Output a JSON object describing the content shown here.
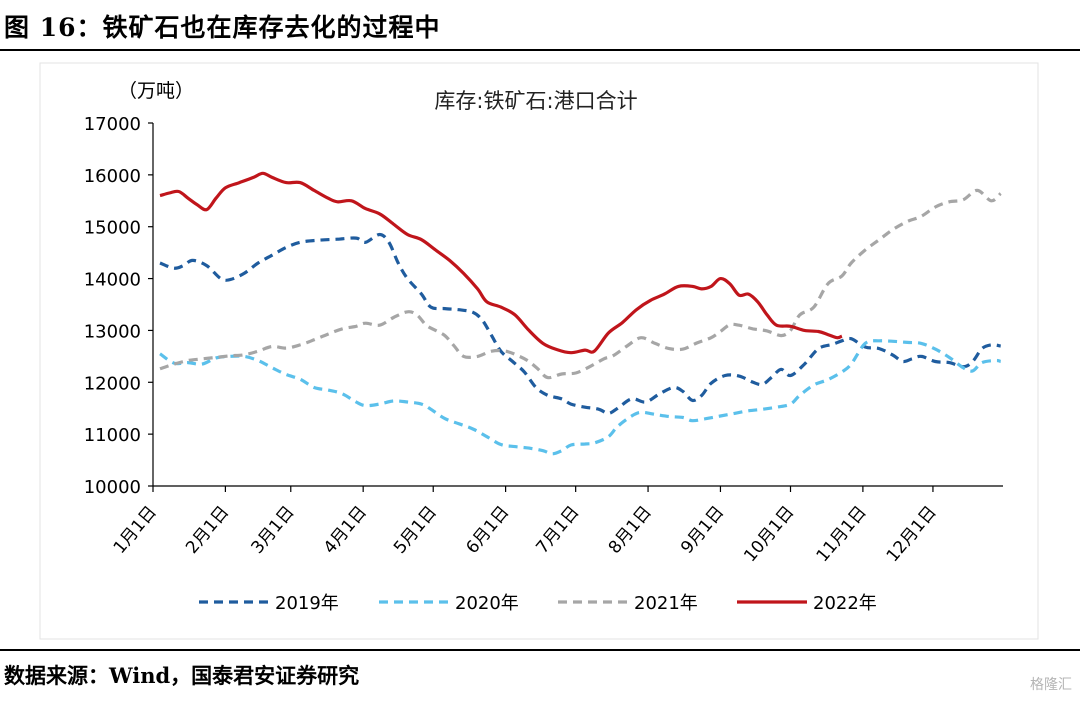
{
  "figure": {
    "title": "图 16：铁矿石也在库存去化的过程中",
    "source": "数据来源：Wind，国泰君安证券研究",
    "watermark": "格隆汇"
  },
  "chart_data": {
    "type": "line",
    "title": "库存:铁矿石:港口合计",
    "ylabel": "（万吨）",
    "ylim": [
      10000,
      17000
    ],
    "yticks": [
      10000,
      11000,
      12000,
      13000,
      14000,
      15000,
      16000,
      17000
    ],
    "xlim": [
      1,
      365
    ],
    "xticks": [
      {
        "label": "1月1日",
        "day": 1
      },
      {
        "label": "2月1日",
        "day": 32
      },
      {
        "label": "3月1日",
        "day": 60
      },
      {
        "label": "4月1日",
        "day": 91
      },
      {
        "label": "5月1日",
        "day": 121
      },
      {
        "label": "6月1日",
        "day": 152
      },
      {
        "label": "7月1日",
        "day": 182
      },
      {
        "label": "8月1日",
        "day": 213
      },
      {
        "label": "9月1日",
        "day": 244
      },
      {
        "label": "10月1日",
        "day": 274
      },
      {
        "label": "11月1日",
        "day": 305
      },
      {
        "label": "12月1日",
        "day": 335
      }
    ],
    "series": [
      {
        "name": "2019年",
        "color": "#1f5c9e",
        "dash": "dashed",
        "points": [
          [
            4,
            14300
          ],
          [
            10,
            14200
          ],
          [
            14,
            14250
          ],
          [
            18,
            14350
          ],
          [
            24,
            14250
          ],
          [
            30,
            14000
          ],
          [
            34,
            13980
          ],
          [
            40,
            14100
          ],
          [
            46,
            14300
          ],
          [
            52,
            14450
          ],
          [
            58,
            14600
          ],
          [
            64,
            14700
          ],
          [
            72,
            14740
          ],
          [
            80,
            14760
          ],
          [
            88,
            14780
          ],
          [
            92,
            14700
          ],
          [
            98,
            14850
          ],
          [
            102,
            14700
          ],
          [
            106,
            14300
          ],
          [
            110,
            14000
          ],
          [
            116,
            13700
          ],
          [
            120,
            13450
          ],
          [
            126,
            13420
          ],
          [
            132,
            13400
          ],
          [
            138,
            13350
          ],
          [
            142,
            13200
          ],
          [
            146,
            12900
          ],
          [
            150,
            12600
          ],
          [
            155,
            12400
          ],
          [
            160,
            12200
          ],
          [
            165,
            11900
          ],
          [
            170,
            11750
          ],
          [
            176,
            11680
          ],
          [
            180,
            11580
          ],
          [
            186,
            11520
          ],
          [
            192,
            11480
          ],
          [
            196,
            11400
          ],
          [
            200,
            11500
          ],
          [
            206,
            11680
          ],
          [
            212,
            11620
          ],
          [
            218,
            11780
          ],
          [
            224,
            11900
          ],
          [
            228,
            11820
          ],
          [
            232,
            11650
          ],
          [
            236,
            11750
          ],
          [
            240,
            11980
          ],
          [
            246,
            12130
          ],
          [
            252,
            12120
          ],
          [
            258,
            12000
          ],
          [
            262,
            11960
          ],
          [
            266,
            12100
          ],
          [
            270,
            12250
          ],
          [
            274,
            12130
          ],
          [
            280,
            12350
          ],
          [
            286,
            12650
          ],
          [
            292,
            12730
          ],
          [
            296,
            12800
          ],
          [
            300,
            12840
          ],
          [
            306,
            12680
          ],
          [
            312,
            12650
          ],
          [
            318,
            12520
          ],
          [
            322,
            12400
          ],
          [
            326,
            12450
          ],
          [
            330,
            12500
          ],
          [
            336,
            12400
          ],
          [
            342,
            12380
          ],
          [
            348,
            12300
          ],
          [
            352,
            12400
          ],
          [
            356,
            12650
          ],
          [
            360,
            12720
          ],
          [
            364,
            12700
          ]
        ]
      },
      {
        "name": "2020年",
        "color": "#5bc0eb",
        "dash": "dashed",
        "points": [
          [
            4,
            12550
          ],
          [
            10,
            12370
          ],
          [
            16,
            12380
          ],
          [
            22,
            12350
          ],
          [
            28,
            12470
          ],
          [
            34,
            12500
          ],
          [
            40,
            12500
          ],
          [
            46,
            12420
          ],
          [
            52,
            12280
          ],
          [
            58,
            12150
          ],
          [
            64,
            12060
          ],
          [
            70,
            11900
          ],
          [
            76,
            11850
          ],
          [
            82,
            11780
          ],
          [
            88,
            11620
          ],
          [
            92,
            11550
          ],
          [
            98,
            11580
          ],
          [
            104,
            11640
          ],
          [
            110,
            11620
          ],
          [
            116,
            11580
          ],
          [
            120,
            11480
          ],
          [
            126,
            11300
          ],
          [
            132,
            11200
          ],
          [
            138,
            11100
          ],
          [
            144,
            10950
          ],
          [
            150,
            10800
          ],
          [
            156,
            10760
          ],
          [
            162,
            10730
          ],
          [
            168,
            10680
          ],
          [
            172,
            10620
          ],
          [
            176,
            10680
          ],
          [
            180,
            10790
          ],
          [
            186,
            10810
          ],
          [
            190,
            10830
          ],
          [
            196,
            10950
          ],
          [
            200,
            11150
          ],
          [
            206,
            11350
          ],
          [
            210,
            11420
          ],
          [
            216,
            11380
          ],
          [
            222,
            11340
          ],
          [
            228,
            11320
          ],
          [
            232,
            11260
          ],
          [
            238,
            11300
          ],
          [
            244,
            11350
          ],
          [
            250,
            11400
          ],
          [
            256,
            11450
          ],
          [
            262,
            11480
          ],
          [
            268,
            11520
          ],
          [
            274,
            11580
          ],
          [
            278,
            11750
          ],
          [
            284,
            11950
          ],
          [
            290,
            12050
          ],
          [
            296,
            12200
          ],
          [
            300,
            12350
          ],
          [
            306,
            12750
          ],
          [
            312,
            12800
          ],
          [
            318,
            12790
          ],
          [
            324,
            12770
          ],
          [
            330,
            12750
          ],
          [
            336,
            12640
          ],
          [
            342,
            12480
          ],
          [
            348,
            12280
          ],
          [
            352,
            12220
          ],
          [
            356,
            12380
          ],
          [
            362,
            12420
          ],
          [
            364,
            12400
          ]
        ]
      },
      {
        "name": "2021年",
        "color": "#a6a6a6",
        "dash": "dashed",
        "points": [
          [
            4,
            12260
          ],
          [
            10,
            12350
          ],
          [
            16,
            12420
          ],
          [
            22,
            12450
          ],
          [
            28,
            12480
          ],
          [
            34,
            12510
          ],
          [
            40,
            12530
          ],
          [
            46,
            12600
          ],
          [
            52,
            12690
          ],
          [
            58,
            12660
          ],
          [
            64,
            12720
          ],
          [
            70,
            12820
          ],
          [
            76,
            12930
          ],
          [
            82,
            13030
          ],
          [
            88,
            13080
          ],
          [
            92,
            13140
          ],
          [
            98,
            13100
          ],
          [
            104,
            13250
          ],
          [
            110,
            13360
          ],
          [
            114,
            13300
          ],
          [
            118,
            13100
          ],
          [
            122,
            13000
          ],
          [
            126,
            12900
          ],
          [
            130,
            12700
          ],
          [
            134,
            12500
          ],
          [
            140,
            12500
          ],
          [
            146,
            12600
          ],
          [
            152,
            12600
          ],
          [
            158,
            12500
          ],
          [
            162,
            12400
          ],
          [
            166,
            12250
          ],
          [
            170,
            12090
          ],
          [
            176,
            12160
          ],
          [
            182,
            12180
          ],
          [
            188,
            12300
          ],
          [
            194,
            12450
          ],
          [
            198,
            12510
          ],
          [
            204,
            12700
          ],
          [
            210,
            12860
          ],
          [
            216,
            12750
          ],
          [
            222,
            12650
          ],
          [
            228,
            12640
          ],
          [
            234,
            12760
          ],
          [
            240,
            12860
          ],
          [
            244,
            12980
          ],
          [
            248,
            13110
          ],
          [
            252,
            13100
          ],
          [
            258,
            13030
          ],
          [
            264,
            12990
          ],
          [
            270,
            12900
          ],
          [
            274,
            13000
          ],
          [
            278,
            13300
          ],
          [
            284,
            13450
          ],
          [
            290,
            13900
          ],
          [
            296,
            14050
          ],
          [
            300,
            14300
          ],
          [
            306,
            14550
          ],
          [
            312,
            14750
          ],
          [
            318,
            14950
          ],
          [
            324,
            15100
          ],
          [
            330,
            15200
          ],
          [
            336,
            15380
          ],
          [
            342,
            15480
          ],
          [
            348,
            15520
          ],
          [
            354,
            15700
          ],
          [
            360,
            15500
          ],
          [
            364,
            15640
          ]
        ]
      },
      {
        "name": "2022年",
        "color": "#c0151b",
        "dash": "solid",
        "points": [
          [
            4,
            15600
          ],
          [
            8,
            15650
          ],
          [
            12,
            15680
          ],
          [
            16,
            15550
          ],
          [
            20,
            15420
          ],
          [
            24,
            15330
          ],
          [
            28,
            15550
          ],
          [
            32,
            15750
          ],
          [
            38,
            15850
          ],
          [
            44,
            15950
          ],
          [
            48,
            16030
          ],
          [
            52,
            15950
          ],
          [
            58,
            15850
          ],
          [
            64,
            15850
          ],
          [
            70,
            15700
          ],
          [
            76,
            15550
          ],
          [
            80,
            15480
          ],
          [
            86,
            15500
          ],
          [
            92,
            15350
          ],
          [
            98,
            15250
          ],
          [
            104,
            15050
          ],
          [
            110,
            14850
          ],
          [
            116,
            14750
          ],
          [
            122,
            14550
          ],
          [
            128,
            14350
          ],
          [
            134,
            14100
          ],
          [
            140,
            13800
          ],
          [
            144,
            13550
          ],
          [
            150,
            13450
          ],
          [
            156,
            13300
          ],
          [
            162,
            13000
          ],
          [
            168,
            12750
          ],
          [
            174,
            12630
          ],
          [
            180,
            12570
          ],
          [
            186,
            12620
          ],
          [
            190,
            12600
          ],
          [
            196,
            12950
          ],
          [
            202,
            13150
          ],
          [
            208,
            13400
          ],
          [
            214,
            13580
          ],
          [
            220,
            13700
          ],
          [
            226,
            13850
          ],
          [
            232,
            13850
          ],
          [
            236,
            13800
          ],
          [
            240,
            13850
          ],
          [
            244,
            14000
          ],
          [
            248,
            13900
          ],
          [
            252,
            13680
          ],
          [
            256,
            13700
          ],
          [
            260,
            13550
          ],
          [
            264,
            13300
          ],
          [
            268,
            13100
          ],
          [
            274,
            13080
          ],
          [
            280,
            13000
          ],
          [
            286,
            12980
          ],
          [
            290,
            12920
          ],
          [
            294,
            12860
          ],
          [
            296,
            12890
          ]
        ]
      }
    ]
  }
}
